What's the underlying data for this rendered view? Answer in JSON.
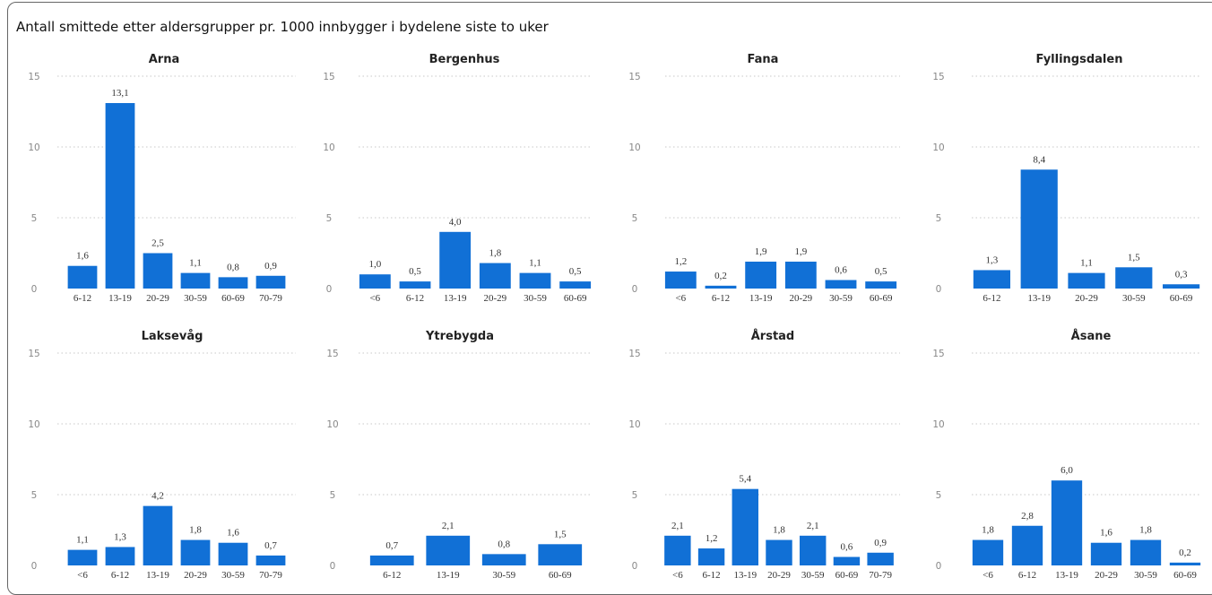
{
  "title": "Antall smittede etter aldersgrupper pr. 1000 innbygger i bydelene siste to uker",
  "colors": {
    "bar": "#1170d6",
    "grid": "#c8c8c8"
  },
  "chart_data": [
    {
      "type": "bar",
      "title": "Arna",
      "categories": [
        "6-12",
        "13-19",
        "20-29",
        "30-59",
        "60-69",
        "70-79"
      ],
      "values": [
        1.6,
        13.1,
        2.5,
        1.1,
        0.8,
        0.9
      ],
      "labels": [
        "1,6",
        "13,1",
        "2,5",
        "1,1",
        "0,8",
        "0,9"
      ],
      "ylim": [
        0,
        15
      ],
      "yticks": [
        "0",
        "5",
        "10",
        "15"
      ]
    },
    {
      "type": "bar",
      "title": "Bergenhus",
      "categories": [
        "<6",
        "6-12",
        "13-19",
        "20-29",
        "30-59",
        "60-69"
      ],
      "values": [
        1.0,
        0.5,
        4.0,
        1.8,
        1.1,
        0.5
      ],
      "labels": [
        "1,0",
        "0,5",
        "4,0",
        "1,8",
        "1,1",
        "0,5"
      ],
      "ylim": [
        0,
        15
      ],
      "yticks": [
        "0",
        "5",
        "10",
        "15"
      ]
    },
    {
      "type": "bar",
      "title": "Fana",
      "categories": [
        "<6",
        "6-12",
        "13-19",
        "20-29",
        "30-59",
        "60-69"
      ],
      "values": [
        1.2,
        0.2,
        1.9,
        1.9,
        0.6,
        0.5
      ],
      "labels": [
        "1,2",
        "0,2",
        "1,9",
        "1,9",
        "0,6",
        "0,5"
      ],
      "ylim": [
        0,
        15
      ],
      "yticks": [
        "0",
        "5",
        "10",
        "15"
      ]
    },
    {
      "type": "bar",
      "title": "Fyllingsdalen",
      "categories": [
        "6-12",
        "13-19",
        "20-29",
        "30-59",
        "60-69"
      ],
      "values": [
        1.3,
        8.4,
        1.1,
        1.5,
        0.3
      ],
      "labels": [
        "1,3",
        "8,4",
        "1,1",
        "1,5",
        "0,3"
      ],
      "ylim": [
        0,
        15
      ],
      "yticks": [
        "0",
        "5",
        "10",
        "15"
      ]
    },
    {
      "type": "bar",
      "title": "Laksevåg",
      "categories": [
        "<6",
        "6-12",
        "13-19",
        "20-29",
        "30-59",
        "70-79"
      ],
      "values": [
        1.1,
        1.3,
        4.2,
        1.8,
        1.6,
        0.7
      ],
      "labels": [
        "1,1",
        "1,3",
        "4,2",
        "1,8",
        "1,6",
        "0,7"
      ],
      "ylim": [
        0,
        15
      ],
      "yticks": [
        "0",
        "5",
        "10",
        "15"
      ]
    },
    {
      "type": "bar",
      "title": "Ytrebygda",
      "categories": [
        "6-12",
        "13-19",
        "30-59",
        "60-69"
      ],
      "values": [
        0.7,
        2.1,
        0.8,
        1.5
      ],
      "labels": [
        "0,7",
        "2,1",
        "0,8",
        "1,5"
      ],
      "ylim": [
        0,
        15
      ],
      "yticks": [
        "0",
        "5",
        "10",
        "15"
      ]
    },
    {
      "type": "bar",
      "title": "Årstad",
      "categories": [
        "<6",
        "6-12",
        "13-19",
        "20-29",
        "30-59",
        "60-69",
        "70-79"
      ],
      "values": [
        2.1,
        1.2,
        5.4,
        1.8,
        2.1,
        0.6,
        0.9
      ],
      "labels": [
        "2,1",
        "1,2",
        "5,4",
        "1,8",
        "2,1",
        "0,6",
        "0,9"
      ],
      "ylim": [
        0,
        15
      ],
      "yticks": [
        "0",
        "5",
        "10",
        "15"
      ]
    },
    {
      "type": "bar",
      "title": "Åsane",
      "categories": [
        "<6",
        "6-12",
        "13-19",
        "20-29",
        "30-59",
        "60-69"
      ],
      "values": [
        1.8,
        2.8,
        6.0,
        1.6,
        1.8,
        0.2
      ],
      "labels": [
        "1,8",
        "2,8",
        "6,0",
        "1,6",
        "1,8",
        "0,2"
      ],
      "ylim": [
        0,
        15
      ],
      "yticks": [
        "0",
        "5",
        "10",
        "15"
      ]
    }
  ]
}
